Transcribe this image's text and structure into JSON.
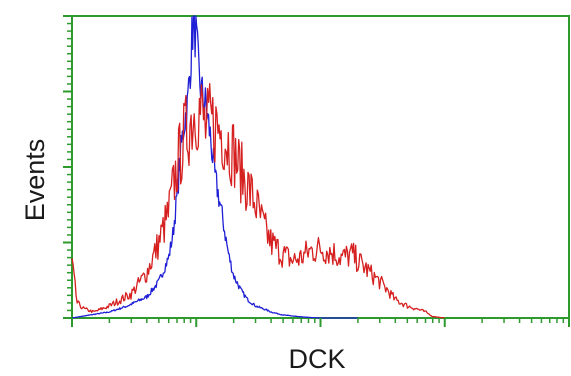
{
  "chart_data": {
    "type": "line",
    "title": "",
    "xlabel": "DCK",
    "ylabel": "Events",
    "xscale": "log",
    "xlim": [
      1,
      10000
    ],
    "ylim": [
      0,
      100
    ],
    "grid": false,
    "legend": "none",
    "colors": {
      "axes": "#2e9a2e",
      "control": "#1f1fd6",
      "sample": "#d62020"
    },
    "series": [
      {
        "color": "#1f1fd6",
        "x": [
          1,
          1.4,
          2,
          2.8,
          4,
          5,
          6,
          6.5,
          7,
          7.5,
          8,
          8.5,
          9,
          9.5,
          10,
          10.5,
          11,
          12,
          13,
          14,
          16,
          18,
          20,
          23,
          26,
          30,
          35,
          40,
          50,
          65,
          80,
          100,
          200
        ],
        "values": [
          0,
          1,
          2,
          4,
          7,
          12,
          20,
          28,
          40,
          55,
          65,
          70,
          85,
          100,
          92,
          80,
          75,
          70,
          60,
          48,
          35,
          22,
          14,
          9,
          6,
          4,
          3,
          2,
          1,
          0.5,
          0.2,
          0,
          0
        ]
      },
      {
        "color": "#d62020",
        "x": [
          1,
          1.1,
          1.25,
          1.5,
          2,
          3,
          4,
          5,
          6,
          7,
          8,
          9,
          10,
          11,
          12,
          13,
          14,
          16,
          18,
          20,
          22,
          25,
          30,
          35,
          40,
          50,
          60,
          70,
          80,
          100,
          120,
          150,
          180,
          200,
          250,
          300,
          350,
          400,
          500,
          600,
          700,
          800,
          1000
        ],
        "values": [
          18,
          5,
          3,
          2,
          4,
          8,
          15,
          25,
          35,
          50,
          60,
          65,
          70,
          68,
          62,
          65,
          64,
          62,
          58,
          55,
          50,
          45,
          38,
          30,
          25,
          21,
          19,
          20,
          22,
          23,
          22,
          20,
          21,
          19,
          15,
          12,
          9,
          6,
          4,
          3,
          2,
          0.5,
          0
        ]
      }
    ]
  }
}
